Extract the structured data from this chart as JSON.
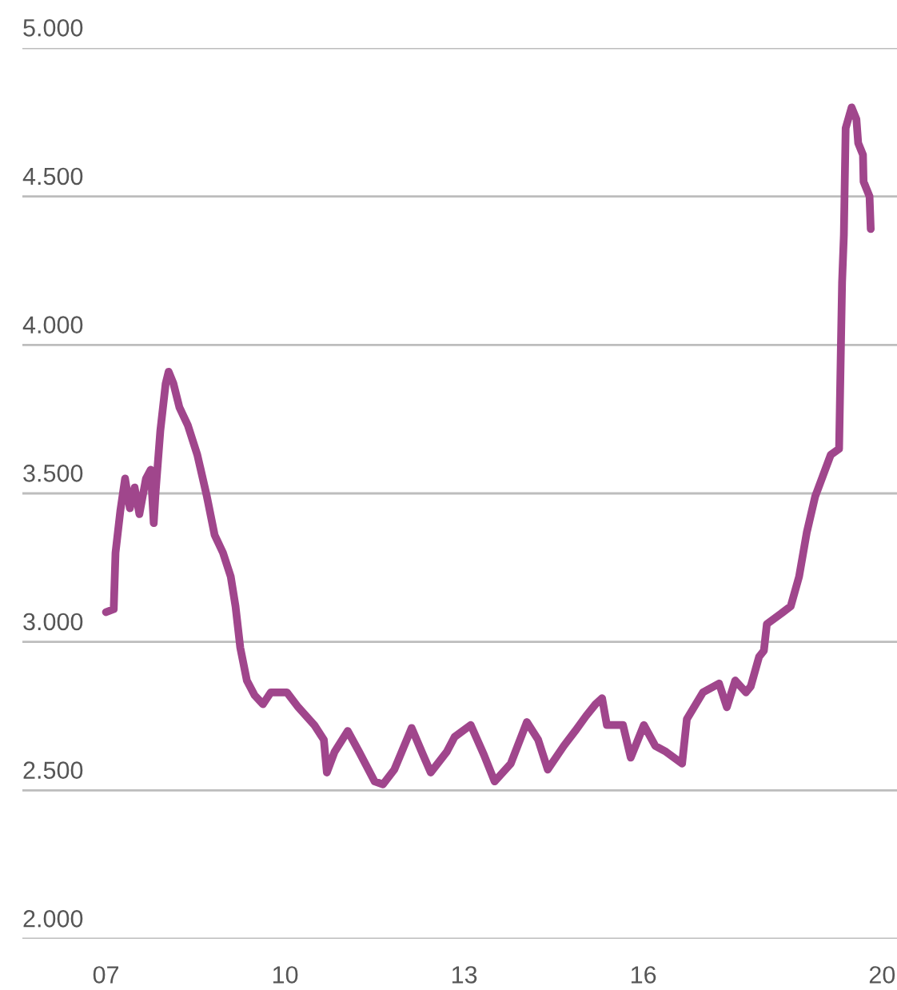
{
  "chart_data": {
    "type": "line",
    "x": [
      2007.0,
      2007.13,
      2007.16,
      2007.24,
      2007.32,
      2007.4,
      2007.48,
      2007.56,
      2007.67,
      2007.75,
      2007.8,
      2007.83,
      2007.91,
      2008.0,
      2008.05,
      2008.13,
      2008.23,
      2008.37,
      2008.53,
      2008.69,
      2008.82,
      2008.96,
      2009.09,
      2009.17,
      2009.25,
      2009.36,
      2009.49,
      2009.63,
      2009.76,
      2010.03,
      2010.22,
      2010.49,
      2010.65,
      2010.7,
      2010.83,
      2011.05,
      2011.24,
      2011.5,
      2011.64,
      2011.83,
      2012.12,
      2012.31,
      2012.44,
      2012.71,
      2012.84,
      2013.11,
      2013.33,
      2013.51,
      2013.78,
      2014.05,
      2014.24,
      2014.4,
      2014.67,
      2014.86,
      2015.04,
      2015.2,
      2015.31,
      2015.39,
      2015.66,
      2015.79,
      2016.01,
      2016.2,
      2016.38,
      2016.65,
      2016.73,
      2017.0,
      2017.27,
      2017.4,
      2017.54,
      2017.72,
      2017.8,
      2017.94,
      2018.02,
      2018.07,
      2018.34,
      2018.47,
      2018.61,
      2018.74,
      2018.88,
      2019.01,
      2019.14,
      2019.28,
      2019.31,
      2019.33,
      2019.36,
      2019.39,
      2019.49,
      2019.57,
      2019.6,
      2019.68,
      2019.69,
      2019.79,
      2019.81
    ],
    "series": [
      {
        "color": "#a0468c",
        "values": [
          3100,
          3110,
          3300,
          3440,
          3550,
          3450,
          3520,
          3430,
          3550,
          3580,
          3400,
          3500,
          3710,
          3870,
          3910,
          3870,
          3790,
          3730,
          3630,
          3490,
          3360,
          3300,
          3220,
          3120,
          2980,
          2870,
          2820,
          2790,
          2830,
          2830,
          2780,
          2720,
          2670,
          2560,
          2630,
          2700,
          2630,
          2530,
          2520,
          2570,
          2710,
          2620,
          2560,
          2630,
          2680,
          2720,
          2620,
          2530,
          2590,
          2730,
          2670,
          2570,
          2650,
          2700,
          2750,
          2790,
          2810,
          2720,
          2720,
          2610,
          2720,
          2650,
          2630,
          2590,
          2740,
          2830,
          2860,
          2780,
          2870,
          2830,
          2850,
          2950,
          2970,
          3060,
          3100,
          3120,
          3220,
          3370,
          3490,
          3560,
          3630,
          3650,
          3990,
          4210,
          4370,
          4730,
          4800,
          4760,
          4680,
          4640,
          4550,
          4500,
          4390
        ]
      }
    ],
    "xlim": [
      2005.6,
      2020.25
    ],
    "xticks": [
      {
        "value": 2007,
        "label": "07"
      },
      {
        "value": 2010,
        "label": "10"
      },
      {
        "value": 2013,
        "label": "13"
      },
      {
        "value": 2016,
        "label": "16"
      },
      {
        "value": 2020,
        "label": "20"
      }
    ],
    "ylim": [
      2000,
      5000
    ],
    "yticks": [
      {
        "value": 2000,
        "label": "2.000"
      },
      {
        "value": 2500,
        "label": "2.500"
      },
      {
        "value": 3000,
        "label": "3.000"
      },
      {
        "value": 3500,
        "label": "3.500"
      },
      {
        "value": 4000,
        "label": "4.000"
      },
      {
        "value": 4500,
        "label": "4.500"
      },
      {
        "value": 5000,
        "label": "5.000"
      }
    ],
    "grid": "y",
    "marker": "none",
    "line_style": "solid"
  }
}
